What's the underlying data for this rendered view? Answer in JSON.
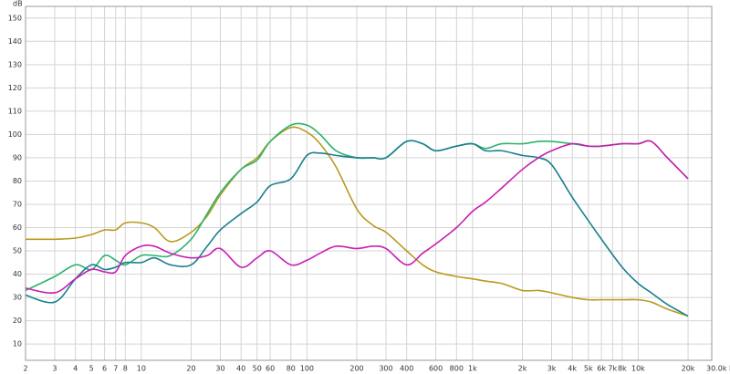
{
  "chart_data": {
    "type": "line",
    "y_label": "dB",
    "log_x": true,
    "grid": true,
    "xlim": [
      2,
      30000
    ],
    "ylim": [
      3,
      155
    ],
    "xticks": [
      2,
      3,
      4,
      5,
      6,
      7,
      8,
      10,
      20,
      30,
      40,
      50,
      60,
      80,
      100,
      200,
      300,
      400,
      600,
      800,
      {
        "value": 1000,
        "label": "1k"
      },
      {
        "value": 2000,
        "label": "2k"
      },
      {
        "value": 3000,
        "label": "3k"
      },
      {
        "value": 4000,
        "label": "4k"
      },
      {
        "value": 5000,
        "label": "5k"
      },
      {
        "value": 6000,
        "label": "6k"
      },
      {
        "value": 7000,
        "label": "7k"
      },
      {
        "value": 8000,
        "label": "8k"
      },
      {
        "value": 10000,
        "label": "10k"
      },
      {
        "value": 20000,
        "label": "20k"
      },
      {
        "value": 30000,
        "label": "30.0k Hz"
      }
    ],
    "yticks": [
      10,
      20,
      30,
      40,
      50,
      60,
      70,
      80,
      90,
      100,
      110,
      120,
      130,
      140,
      150
    ],
    "x": [
      2,
      3,
      4,
      5,
      6,
      7,
      8,
      10,
      12,
      15,
      20,
      25,
      30,
      40,
      50,
      60,
      80,
      100,
      120,
      150,
      200,
      250,
      300,
      400,
      500,
      600,
      800,
      1000,
      1200,
      1500,
      2000,
      2500,
      3000,
      4000,
      5000,
      6000,
      8000,
      10000,
      12000,
      15000,
      20000
    ],
    "series": [
      {
        "color": "#b89a1e",
        "values": [
          55,
          55,
          55.5,
          57,
          59,
          59,
          62,
          62,
          60,
          54,
          58,
          65,
          74,
          85,
          90,
          97,
          103,
          101,
          96,
          86,
          68,
          61,
          58,
          50,
          44,
          41,
          39,
          38,
          37,
          36,
          33,
          33,
          32,
          30,
          29,
          29,
          29,
          29,
          28,
          25,
          22
        ]
      },
      {
        "color": "#2db36e",
        "values": [
          33,
          39,
          44,
          42,
          48,
          46,
          44,
          48,
          48,
          48,
          55,
          66,
          75,
          85,
          89,
          97,
          104,
          104,
          100,
          93,
          90,
          90,
          90,
          97,
          96,
          93,
          95,
          96,
          94,
          96,
          96,
          97,
          97,
          96,
          95,
          95,
          96,
          96,
          97,
          90,
          81
        ]
      },
      {
        "color": "#1a7f8f",
        "values": [
          31,
          28,
          38,
          44,
          42,
          43,
          45,
          45,
          47,
          44,
          44,
          52,
          59,
          66,
          71,
          78,
          81,
          91,
          92,
          91,
          90,
          90,
          90,
          97,
          96,
          93,
          95,
          96,
          93,
          93,
          91,
          90,
          87,
          73,
          63,
          55,
          43,
          36,
          32,
          27,
          22
        ]
      },
      {
        "color": "#c81eb4",
        "values": [
          34,
          32,
          38,
          42,
          41,
          41,
          48,
          52,
          52,
          49,
          47,
          48,
          51,
          43,
          47,
          50,
          44,
          46,
          49,
          52,
          51,
          52,
          51,
          44,
          49,
          53,
          60,
          67,
          71,
          77,
          85,
          90,
          93,
          96,
          95,
          95,
          96,
          96,
          97,
          90,
          81
        ]
      }
    ]
  }
}
